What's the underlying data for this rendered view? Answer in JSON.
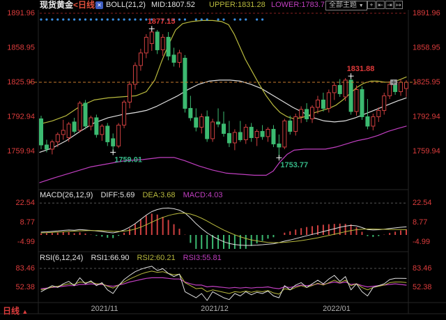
{
  "header": {
    "symbol": "现货黄金",
    "period": "<日线>",
    "indicator_icon_glyph": "✕",
    "boll": "BOLL(21,2)",
    "mid": "MID:1807.52",
    "upper": "UPPER:1831.28",
    "lower": "LOWER:1783.7",
    "theme_dropdown": "全部主题",
    "dropdown_arrow": "▼",
    "toolbar_icons": [
      {
        "name": "crosshair-icon",
        "glyph": "+"
      },
      {
        "name": "pane-shift-left-icon",
        "glyph": "⇤"
      },
      {
        "name": "pane-shift-right-icon",
        "glyph": "⇥"
      },
      {
        "name": "pane-expand-icon",
        "glyph": "↦"
      }
    ]
  },
  "bottom": {
    "period_label": "日线",
    "arrow": "▲",
    "dates": [
      "2021/11",
      "2021/12",
      "2022/01"
    ],
    "date_x": [
      150,
      308,
      483
    ]
  },
  "colors": {
    "up": "#d04040",
    "down": "#3cba71",
    "boll_upper": "#b9ba3e",
    "boll_mid": "#e0e0e0",
    "boll_lower": "#c13fc1",
    "axis_text": "#dc3c3c",
    "annotation_red": "#e03a3a",
    "annotation_green": "#35b585",
    "current_price_line": "#c97d2e",
    "top_dashed_line": "#8a2020",
    "grid_dashed": "#555555",
    "signal_dots": "#3a8fe0",
    "date_text": "#b0b0b0",
    "panel_border": "#262626",
    "marker_cross": "#ffffff"
  },
  "chart_data": {
    "type": "candlestick",
    "main": {
      "y_ticks": [
        "1891.96",
        "1858.95",
        "1825.95",
        "1792.94",
        "1759.94"
      ],
      "price_top": 1891.96,
      "current_price": 1825.95,
      "candles": [
        [
          1791,
          1794,
          1762,
          1766
        ],
        [
          1766,
          1771,
          1759,
          1762
        ],
        [
          1762,
          1771,
          1757,
          1769
        ],
        [
          1769,
          1778,
          1764,
          1776
        ],
        [
          1776,
          1790,
          1771,
          1780
        ],
        [
          1773,
          1788,
          1769,
          1786
        ],
        [
          1788,
          1792,
          1777,
          1779
        ],
        [
          1780,
          1808,
          1778,
          1806
        ],
        [
          1806,
          1809,
          1781,
          1784
        ],
        [
          1784,
          1794,
          1780,
          1792
        ],
        [
          1792,
          1795,
          1773,
          1776
        ],
        [
          1776,
          1786,
          1770,
          1784
        ],
        [
          1784,
          1787,
          1765,
          1769
        ],
        [
          1772,
          1777,
          1759.01,
          1765
        ],
        [
          1765,
          1787,
          1763,
          1785
        ],
        [
          1785,
          1809,
          1782,
          1807
        ],
        [
          1807,
          1827,
          1801,
          1824
        ],
        [
          1824,
          1845,
          1819,
          1842
        ],
        [
          1842,
          1858,
          1837,
          1854
        ],
        [
          1854,
          1872,
          1849,
          1869
        ],
        [
          1863,
          1877.15,
          1856,
          1874
        ],
        [
          1874,
          1876,
          1853,
          1857
        ],
        [
          1857,
          1872,
          1851,
          1869
        ],
        [
          1869,
          1874,
          1847,
          1851
        ],
        [
          1852,
          1859,
          1841,
          1845
        ],
        [
          1845,
          1857,
          1840,
          1854
        ],
        [
          1849,
          1852,
          1797,
          1801
        ],
        [
          1801,
          1813,
          1789,
          1792
        ],
        [
          1792,
          1801,
          1779,
          1783
        ],
        [
          1783,
          1796,
          1777,
          1793
        ],
        [
          1793,
          1799,
          1769,
          1772
        ],
        [
          1772,
          1791,
          1769,
          1788
        ],
        [
          1788,
          1801,
          1783,
          1786
        ],
        [
          1786,
          1798,
          1774,
          1777
        ],
        [
          1777,
          1789,
          1764,
          1768
        ],
        [
          1768,
          1781,
          1761,
          1778
        ],
        [
          1778,
          1789,
          1769,
          1771
        ],
        [
          1771,
          1786,
          1767,
          1783
        ],
        [
          1783,
          1787,
          1769,
          1773
        ],
        [
          1773,
          1781,
          1765,
          1779
        ],
        [
          1779,
          1785,
          1771,
          1774
        ],
        [
          1774,
          1783,
          1769,
          1781
        ],
        [
          1781,
          1785,
          1764,
          1767
        ],
        [
          1767,
          1776,
          1753.77,
          1764
        ],
        [
          1764,
          1791,
          1762,
          1789
        ],
        [
          1789,
          1794,
          1776,
          1779
        ],
        [
          1779,
          1796,
          1775,
          1793
        ],
        [
          1793,
          1803,
          1787,
          1800
        ],
        [
          1800,
          1806,
          1788,
          1791
        ],
        [
          1791,
          1804,
          1787,
          1802
        ],
        [
          1802,
          1813,
          1796,
          1809
        ],
        [
          1809,
          1816,
          1798,
          1801
        ],
        [
          1801,
          1819,
          1797,
          1816
        ],
        [
          1816,
          1826,
          1809,
          1823
        ],
        [
          1823,
          1829,
          1812,
          1815
        ],
        [
          1812,
          1830,
          1808,
          1828
        ],
        [
          1828,
          1831.88,
          1795,
          1798
        ],
        [
          1798,
          1823,
          1794,
          1819
        ],
        [
          1819,
          1822,
          1790,
          1793
        ],
        [
          1793,
          1810,
          1781,
          1784
        ],
        [
          1784,
          1796,
          1780,
          1793
        ],
        [
          1793,
          1802,
          1788,
          1799
        ],
        [
          1799,
          1816,
          1795,
          1813
        ],
        [
          1813,
          1827,
          1810,
          1824
        ],
        [
          1824,
          1828,
          1814,
          1817
        ],
        [
          1817,
          1829,
          1813,
          1826
        ],
        [
          1820,
          1828,
          1812,
          1825.95
        ]
      ],
      "annotations": [
        {
          "index": 13,
          "price": 1759.01,
          "label": "1759.01",
          "type": "low",
          "color": "green"
        },
        {
          "index": 20,
          "price": 1877.15,
          "label": "1877.15",
          "type": "high",
          "color": "red"
        },
        {
          "index": 43,
          "price": 1753.77,
          "label": "1753.77",
          "type": "low",
          "color": "green"
        },
        {
          "index": 56,
          "price": 1831.88,
          "label": "1831.88",
          "type": "high",
          "color": "red"
        }
      ],
      "signal_dots": [
        0,
        1,
        2,
        3,
        4,
        5,
        6,
        7,
        8,
        9,
        10,
        11,
        12,
        13,
        14,
        15,
        16,
        17,
        18,
        19,
        20,
        22,
        23,
        24,
        25,
        26,
        28,
        29,
        30,
        32,
        33,
        35,
        36,
        37,
        39,
        40
      ],
      "boll_upper": [
        [
          57,
          1786
        ],
        [
          75,
          1789
        ],
        [
          95,
          1794
        ],
        [
          115,
          1803
        ],
        [
          135,
          1809
        ],
        [
          155,
          1811
        ],
        [
          175,
          1812
        ],
        [
          195,
          1813
        ],
        [
          210,
          1817
        ],
        [
          222,
          1828
        ],
        [
          232,
          1846
        ],
        [
          242,
          1862
        ],
        [
          252,
          1876
        ],
        [
          262,
          1882
        ],
        [
          275,
          1884
        ],
        [
          290,
          1885
        ],
        [
          305,
          1885
        ],
        [
          318,
          1884
        ],
        [
          328,
          1881
        ],
        [
          336,
          1872
        ],
        [
          344,
          1860
        ],
        [
          352,
          1848
        ],
        [
          362,
          1836
        ],
        [
          372,
          1824
        ],
        [
          382,
          1813
        ],
        [
          392,
          1804
        ],
        [
          402,
          1797
        ],
        [
          412,
          1793
        ],
        [
          422,
          1791
        ],
        [
          432,
          1792
        ],
        [
          442,
          1794
        ],
        [
          452,
          1797
        ],
        [
          462,
          1799
        ],
        [
          472,
          1801
        ],
        [
          482,
          1804
        ],
        [
          492,
          1809
        ],
        [
          502,
          1815
        ],
        [
          512,
          1821
        ],
        [
          522,
          1825
        ],
        [
          532,
          1827
        ],
        [
          542,
          1827
        ],
        [
          552,
          1826
        ],
        [
          562,
          1826
        ],
        [
          572,
          1828
        ],
        [
          583,
          1831
        ]
      ],
      "boll_mid": [
        [
          57,
          1759
        ],
        [
          75,
          1763
        ],
        [
          95,
          1770
        ],
        [
          115,
          1779
        ],
        [
          135,
          1787
        ],
        [
          155,
          1792
        ],
        [
          175,
          1795
        ],
        [
          195,
          1797
        ],
        [
          210,
          1799
        ],
        [
          225,
          1803
        ],
        [
          240,
          1808
        ],
        [
          255,
          1813
        ],
        [
          270,
          1819
        ],
        [
          285,
          1824
        ],
        [
          300,
          1827
        ],
        [
          315,
          1828
        ],
        [
          330,
          1828
        ],
        [
          345,
          1827
        ],
        [
          360,
          1824
        ],
        [
          375,
          1820
        ],
        [
          390,
          1814
        ],
        [
          405,
          1808
        ],
        [
          420,
          1802
        ],
        [
          435,
          1797
        ],
        [
          450,
          1792
        ],
        [
          465,
          1789
        ],
        [
          480,
          1788
        ],
        [
          495,
          1789
        ],
        [
          510,
          1792
        ],
        [
          525,
          1796
        ],
        [
          540,
          1800
        ],
        [
          555,
          1804
        ],
        [
          570,
          1808
        ],
        [
          583,
          1811
        ]
      ],
      "boll_lower": [
        [
          57,
          1730
        ],
        [
          80,
          1735
        ],
        [
          105,
          1740
        ],
        [
          130,
          1745
        ],
        [
          155,
          1748
        ],
        [
          180,
          1751
        ],
        [
          205,
          1752
        ],
        [
          230,
          1754
        ],
        [
          250,
          1754
        ],
        [
          265,
          1751
        ],
        [
          285,
          1746
        ],
        [
          305,
          1742
        ],
        [
          325,
          1739
        ],
        [
          345,
          1738
        ],
        [
          365,
          1737
        ],
        [
          382,
          1737
        ],
        [
          392,
          1741
        ],
        [
          402,
          1750
        ],
        [
          412,
          1757
        ],
        [
          422,
          1761
        ],
        [
          437,
          1762
        ],
        [
          452,
          1762
        ],
        [
          467,
          1762
        ],
        [
          482,
          1764
        ],
        [
          497,
          1767
        ],
        [
          512,
          1770
        ],
        [
          527,
          1772
        ],
        [
          542,
          1775
        ],
        [
          557,
          1779
        ],
        [
          572,
          1782
        ],
        [
          583,
          1784
        ]
      ]
    },
    "macd": {
      "title": "MACD(26,12,9)",
      "diff_label": "DIFF:5.69",
      "dea_label": "DEA:3.68",
      "macd_label": "MACD:4.03",
      "y_ticks": [
        "22.54",
        "8.77",
        "-4.99"
      ],
      "diff": [
        2.0,
        2.2,
        2.5,
        2.8,
        3.2,
        3.5,
        3.3,
        3.8,
        3.5,
        3.2,
        2.8,
        2.4,
        1.8,
        1.5,
        2.2,
        3.5,
        5.5,
        8,
        11,
        14,
        16.5,
        18,
        18.8,
        19,
        18.5,
        17.5,
        15.5,
        12,
        8,
        4.5,
        1.5,
        -1,
        -3,
        -4.8,
        -6,
        -6.8,
        -7.2,
        -7.4,
        -7.4,
        -7.2,
        -6.9,
        -6.5,
        -6.2,
        -5.4,
        -4.4,
        -3.6,
        -2.6,
        -1.6,
        -0.6,
        0.4,
        1.4,
        2.4,
        3.4,
        4.4,
        5.4,
        6.2,
        6.8,
        6.4,
        5.2,
        3.8,
        3.5,
        3.7,
        4.1,
        4.6,
        5.0,
        5.4,
        5.69
      ],
      "dea": [
        1.5,
        1.6,
        1.8,
        2.0,
        2.2,
        2.5,
        2.7,
        2.9,
        3.0,
        3.1,
        3.1,
        3.0,
        2.8,
        2.6,
        2.5,
        2.7,
        3.2,
        4.2,
        5.5,
        7.2,
        9.0,
        10.8,
        12.4,
        13.7,
        14.7,
        15.3,
        15.4,
        14.8,
        13.5,
        11.8,
        9.8,
        7.6,
        5.5,
        3.5,
        1.7,
        0.1,
        -1.3,
        -2.5,
        -3.5,
        -4.2,
        -4.8,
        -5.2,
        -5.4,
        -5.4,
        -5.2,
        -4.9,
        -4.5,
        -4.0,
        -3.4,
        -2.7,
        -2.0,
        -1.2,
        -0.4,
        0.5,
        1.4,
        2.3,
        3.1,
        3.7,
        4.1,
        4.2,
        4.2,
        4.1,
        4.0,
        3.9,
        3.85,
        3.8,
        3.68
      ]
    },
    "rsi": {
      "title": "RSI(6,12,24)",
      "rsi1_label": "RSI1:66.90",
      "rsi2_label": "RSI2:60.21",
      "rsi3_label": "RSI3:55.81",
      "y_ticks": [
        "83.46",
        "52.38"
      ],
      "rsi1": [
        45,
        50,
        55,
        52,
        58,
        62,
        55,
        68,
        58,
        63,
        55,
        60,
        48,
        42,
        55,
        65,
        72,
        78,
        82,
        85,
        87,
        80,
        83,
        75,
        70,
        74,
        45,
        40,
        35,
        42,
        30,
        45,
        40,
        35,
        32,
        42,
        38,
        45,
        40,
        44,
        42,
        46,
        38,
        35,
        55,
        48,
        56,
        60,
        52,
        58,
        64,
        58,
        66,
        72,
        62,
        70,
        48,
        58,
        45,
        38,
        52,
        55,
        58,
        65,
        67,
        67,
        66.9
      ],
      "rsi2": [
        48,
        50,
        53,
        54,
        56,
        58,
        57,
        61,
        60,
        61,
        58,
        58,
        54,
        51,
        56,
        61,
        66,
        70,
        74,
        77,
        79,
        77,
        78,
        75,
        73,
        74,
        60,
        55,
        50,
        51,
        45,
        48,
        46,
        44,
        42,
        45,
        44,
        46,
        44,
        46,
        45,
        47,
        43,
        41,
        50,
        48,
        52,
        55,
        52,
        55,
        59,
        56,
        60,
        64,
        60,
        64,
        55,
        58,
        52,
        48,
        52,
        54,
        56,
        60,
        61,
        61,
        60.21
      ],
      "rsi3": [
        50,
        51,
        52,
        53,
        54,
        55,
        55,
        57,
        57,
        58,
        57,
        57,
        55,
        54,
        56,
        58,
        61,
        63,
        65,
        67,
        68,
        68,
        68,
        67,
        66,
        66,
        61,
        58,
        56,
        56,
        53,
        54,
        53,
        52,
        51,
        52,
        51,
        52,
        51,
        52,
        52,
        53,
        51,
        50,
        53,
        52,
        54,
        56,
        55,
        56,
        58,
        57,
        59,
        61,
        59,
        61,
        57,
        58,
        55,
        53,
        54,
        55,
        56,
        57,
        58,
        57,
        55.81
      ]
    }
  }
}
